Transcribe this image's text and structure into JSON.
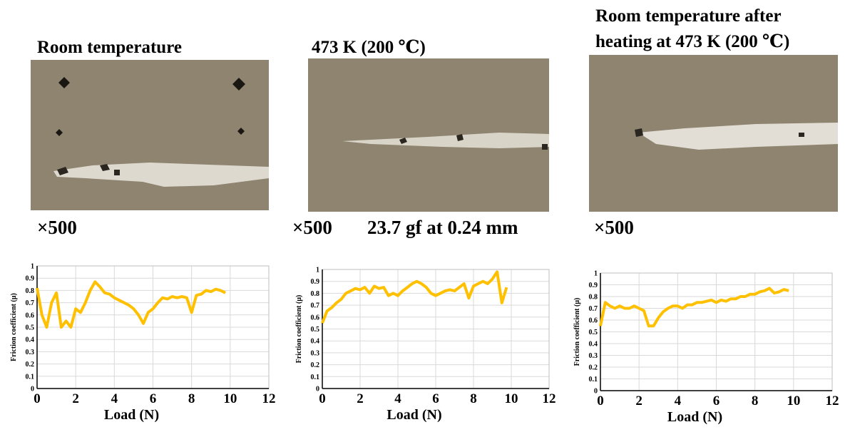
{
  "panels": [
    {
      "title": [
        "Room temperature"
      ],
      "magnification": "×500",
      "note": null
    },
    {
      "title": [
        "473 K (200 ℃)"
      ],
      "magnification": "×500",
      "note": "23.7 gf at 0.24 mm"
    },
    {
      "title": [
        "Room temperature after",
        "heating at 473 K (200 ℃)"
      ],
      "magnification": "×500",
      "note": null
    }
  ],
  "chart_data": [
    {
      "type": "line",
      "xlabel": "Load (N)",
      "ylabel": "Friction coefficient (μ)",
      "xlim": [
        0,
        12
      ],
      "ylim": [
        0,
        1
      ],
      "xticks": [
        0,
        2,
        4,
        6,
        8,
        10,
        12
      ],
      "yticks": [
        0,
        0.1,
        0.2,
        0.3,
        0.4,
        0.5,
        0.6,
        0.7,
        0.8,
        0.9,
        1
      ],
      "grid": true,
      "x": [
        0,
        0.25,
        0.5,
        0.75,
        1,
        1.25,
        1.5,
        1.75,
        2,
        2.25,
        2.5,
        2.75,
        3,
        3.25,
        3.5,
        3.75,
        4,
        4.25,
        4.5,
        4.75,
        5,
        5.25,
        5.5,
        5.75,
        6,
        6.25,
        6.5,
        6.75,
        7,
        7.25,
        7.5,
        7.75,
        8,
        8.25,
        8.5,
        8.75,
        9,
        9.25,
        9.5,
        9.75
      ],
      "series": [
        {
          "color": "#ffc000",
          "values": [
            0.82,
            0.6,
            0.5,
            0.7,
            0.78,
            0.5,
            0.55,
            0.5,
            0.65,
            0.62,
            0.7,
            0.8,
            0.87,
            0.83,
            0.78,
            0.77,
            0.74,
            0.72,
            0.7,
            0.68,
            0.65,
            0.6,
            0.53,
            0.62,
            0.65,
            0.7,
            0.74,
            0.73,
            0.75,
            0.74,
            0.75,
            0.74,
            0.62,
            0.76,
            0.77,
            0.8,
            0.79,
            0.81,
            0.8,
            0.78
          ]
        }
      ]
    },
    {
      "type": "line",
      "xlabel": "Load (N)",
      "ylabel": "Friction coefficient (μ)",
      "xlim": [
        0,
        12
      ],
      "ylim": [
        0,
        1
      ],
      "xticks": [
        0,
        2,
        4,
        6,
        8,
        10,
        12
      ],
      "yticks": [
        0,
        0.1,
        0.2,
        0.3,
        0.4,
        0.5,
        0.6,
        0.7,
        0.8,
        0.9,
        1
      ],
      "grid": true,
      "x": [
        0,
        0.25,
        0.5,
        0.75,
        1,
        1.25,
        1.5,
        1.75,
        2,
        2.25,
        2.5,
        2.75,
        3,
        3.25,
        3.5,
        3.75,
        4,
        4.25,
        4.5,
        4.75,
        5,
        5.25,
        5.5,
        5.75,
        6,
        6.25,
        6.5,
        6.75,
        7,
        7.25,
        7.5,
        7.75,
        8,
        8.25,
        8.5,
        8.75,
        9,
        9.25,
        9.5,
        9.75
      ],
      "series": [
        {
          "color": "#ffc000",
          "values": [
            0.55,
            0.65,
            0.68,
            0.72,
            0.75,
            0.8,
            0.82,
            0.84,
            0.83,
            0.85,
            0.8,
            0.86,
            0.84,
            0.85,
            0.78,
            0.8,
            0.78,
            0.82,
            0.85,
            0.88,
            0.9,
            0.88,
            0.85,
            0.8,
            0.78,
            0.8,
            0.82,
            0.83,
            0.82,
            0.85,
            0.88,
            0.76,
            0.86,
            0.88,
            0.9,
            0.88,
            0.92,
            0.98,
            0.72,
            0.85
          ]
        }
      ]
    },
    {
      "type": "line",
      "xlabel": "Load (N)",
      "ylabel": "Friction coefficient (μ)",
      "xlim": [
        0,
        12
      ],
      "ylim": [
        0,
        1
      ],
      "xticks": [
        0,
        2,
        4,
        6,
        8,
        10,
        12
      ],
      "yticks": [
        0,
        0.1,
        0.2,
        0.3,
        0.4,
        0.5,
        0.6,
        0.7,
        0.8,
        0.9,
        1
      ],
      "grid": true,
      "x": [
        0,
        0.25,
        0.5,
        0.75,
        1,
        1.25,
        1.5,
        1.75,
        2,
        2.25,
        2.5,
        2.75,
        3,
        3.25,
        3.5,
        3.75,
        4,
        4.25,
        4.5,
        4.75,
        5,
        5.25,
        5.5,
        5.75,
        6,
        6.25,
        6.5,
        6.75,
        7,
        7.25,
        7.5,
        7.75,
        8,
        8.25,
        8.5,
        8.75,
        9,
        9.25,
        9.5,
        9.75
      ],
      "series": [
        {
          "color": "#ffc000",
          "values": [
            0.55,
            0.75,
            0.72,
            0.7,
            0.72,
            0.7,
            0.7,
            0.72,
            0.7,
            0.68,
            0.55,
            0.55,
            0.62,
            0.67,
            0.7,
            0.72,
            0.72,
            0.7,
            0.73,
            0.73,
            0.75,
            0.75,
            0.76,
            0.77,
            0.75,
            0.77,
            0.76,
            0.78,
            0.78,
            0.8,
            0.8,
            0.82,
            0.82,
            0.84,
            0.85,
            0.87,
            0.83,
            0.84,
            0.86,
            0.85
          ]
        }
      ]
    }
  ]
}
